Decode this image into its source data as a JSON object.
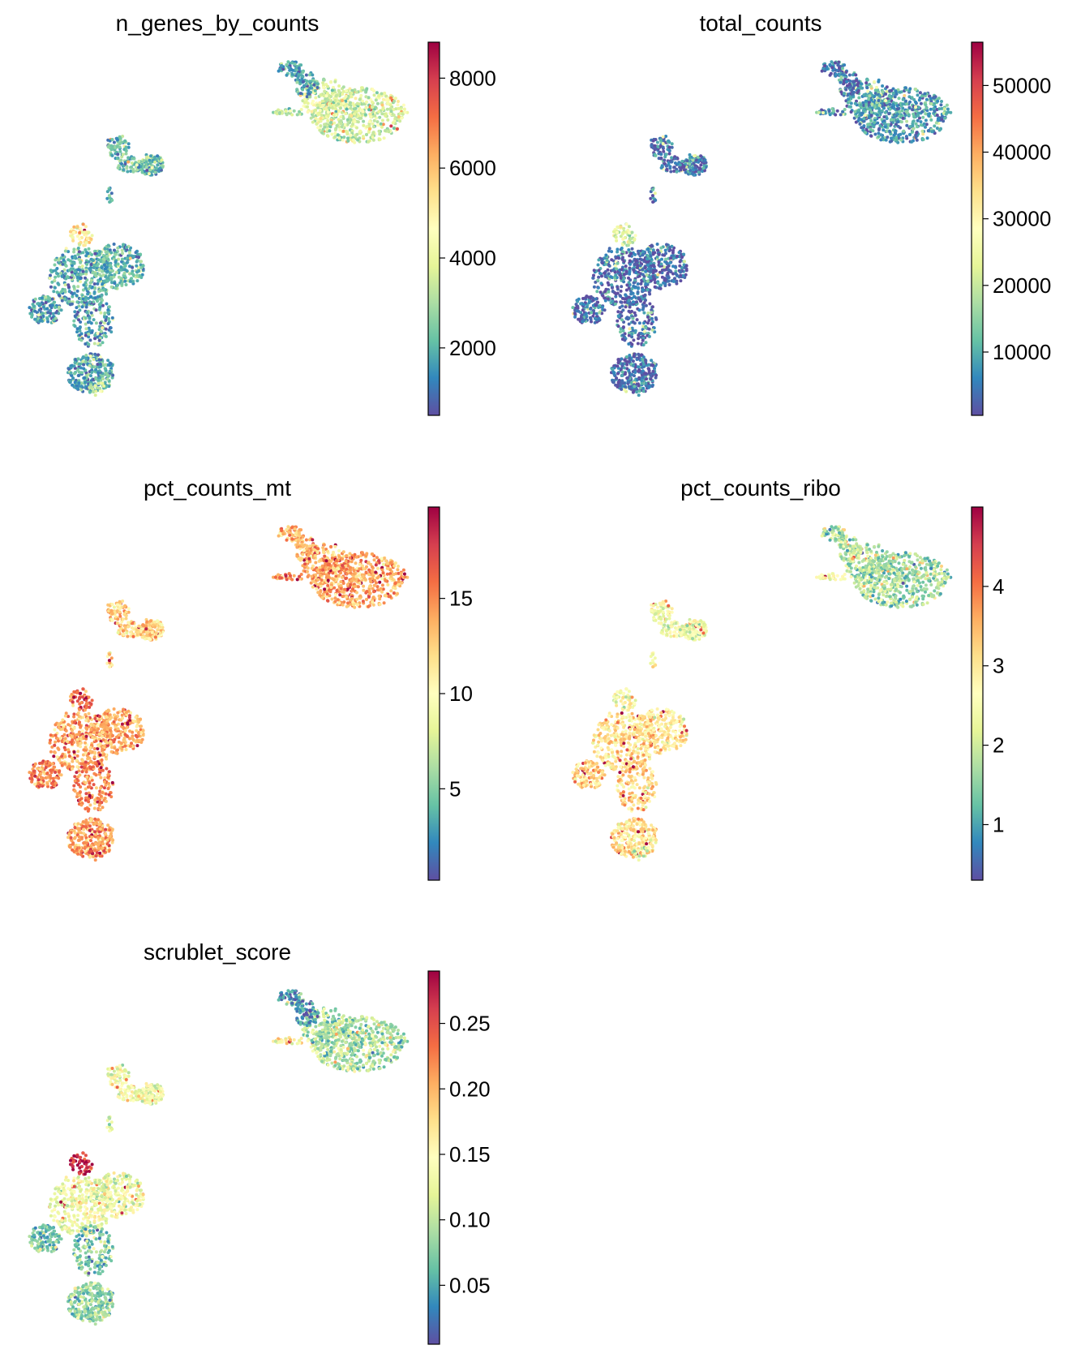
{
  "figure": {
    "kind": "UMAP feature panels",
    "colormap": "Spectral_r"
  },
  "colormap_stops": [
    "#5e4fa2",
    "#3288bd",
    "#66c2a5",
    "#abdda4",
    "#e6f598",
    "#ffffbf",
    "#fee08b",
    "#fdae61",
    "#f46d43",
    "#d53e4f",
    "#9e0142"
  ],
  "chart_data": [
    {
      "type": "scatter",
      "title": "n_genes_by_counts",
      "colorbar": {
        "vmin": 500,
        "vmax": 8800,
        "ticks": [
          2000,
          4000,
          6000,
          8000
        ],
        "tick_labels": [
          "2000",
          "4000",
          "6000",
          "8000"
        ]
      },
      "cluster_levels": {
        "A": 0.38,
        "B": 0.15,
        "C": 0.2,
        "D": 0.55,
        "E": 0.18,
        "F": 0.14,
        "G": 0.16,
        "H": 0.35,
        "I": 0.33
      }
    },
    {
      "type": "scatter",
      "title": "total_counts",
      "colorbar": {
        "vmin": 500,
        "vmax": 56500,
        "ticks": [
          10000,
          20000,
          30000,
          40000,
          50000
        ],
        "tick_labels": [
          "10000",
          "20000",
          "30000",
          "40000",
          "50000"
        ]
      },
      "cluster_levels": {
        "A": 0.14,
        "B": 0.05,
        "C": 0.07,
        "D": 0.4,
        "E": 0.06,
        "F": 0.05,
        "G": 0.05,
        "H": 0.12,
        "I": 0.11
      }
    },
    {
      "type": "scatter",
      "title": "pct_counts_mt",
      "colorbar": {
        "vmin": 0.2,
        "vmax": 19.8,
        "ticks": [
          5,
          10,
          15
        ],
        "tick_labels": [
          "5",
          "10",
          "15"
        ]
      },
      "cluster_levels": {
        "A": 0.7,
        "B": 0.68,
        "C": 0.62,
        "D": 0.8,
        "E": 0.7,
        "F": 0.76,
        "G": 0.72,
        "H": 0.85,
        "I": 0.75
      }
    },
    {
      "type": "scatter",
      "title": "pct_counts_ribo",
      "colorbar": {
        "vmin": 0.3,
        "vmax": 5.0,
        "ticks": [
          1,
          2,
          3,
          4
        ],
        "tick_labels": [
          "1",
          "2",
          "3",
          "4"
        ]
      },
      "cluster_levels": {
        "A": 0.3,
        "B": 0.32,
        "C": 0.45,
        "D": 0.5,
        "E": 0.58,
        "F": 0.62,
        "G": 0.6,
        "H": 0.33,
        "I": 0.5
      }
    },
    {
      "type": "scatter",
      "title": "scrublet_score",
      "colorbar": {
        "vmin": 0.005,
        "vmax": 0.29,
        "ticks": [
          0.05,
          0.1,
          0.15,
          0.2,
          0.25
        ],
        "tick_labels": [
          "0.05",
          "0.10",
          "0.15",
          "0.20",
          "0.25"
        ]
      },
      "cluster_levels": {
        "A": 0.3,
        "B": 0.12,
        "C": 0.45,
        "D": 0.92,
        "E": 0.45,
        "F": 0.22,
        "G": 0.25,
        "H": 0.3,
        "I": 0.55
      }
    }
  ]
}
